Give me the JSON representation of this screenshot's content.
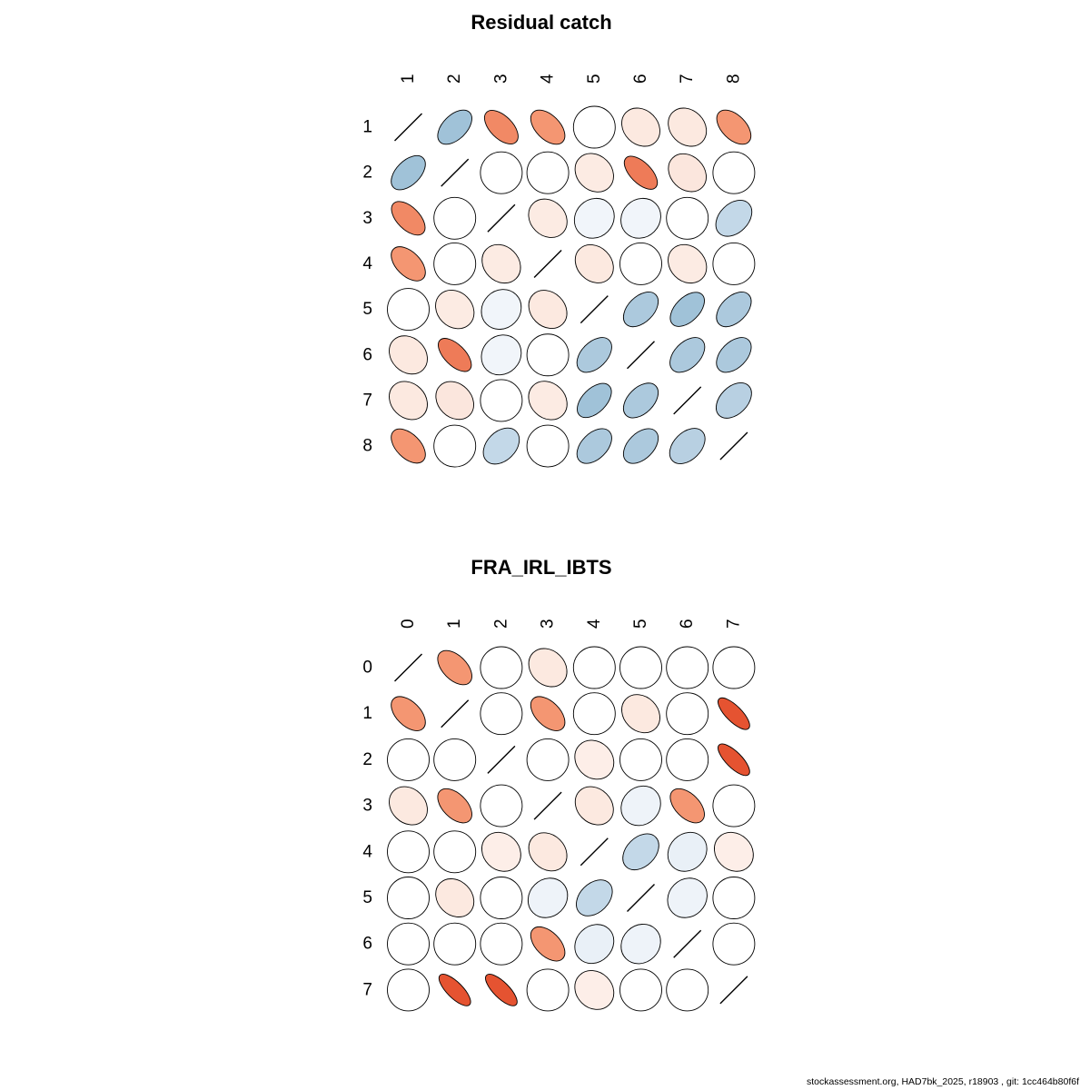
{
  "footer": "stockassessment.org, HAD7bk_2025, r18903 , git: 1cc464b80f6f",
  "colors": {
    "zero": "#ffffff",
    "positive_weak": "#dbe6f2",
    "positive_mid": "#a0c2d8",
    "positive_strong": "#6092bc",
    "positive_max": "#2166ac",
    "negative_weak": "#fbe3d8",
    "negative_mid": "#f49672",
    "negative_strong": "#e55331",
    "negative_max": "#b2182b",
    "stroke": "#000000"
  },
  "chart_data": [
    {
      "type": "heatmap",
      "subtype": "correlation-ellipse-matrix",
      "title": "Residual catch",
      "labels": [
        "1",
        "2",
        "3",
        "4",
        "5",
        "6",
        "7",
        "8"
      ],
      "encoding": "ellipse tilted up-right = positive correlation (blue), tilted down-right = negative correlation (red), circle = near zero, diagonal line = 1",
      "legend_position": "none",
      "grid": false,
      "matrix": [
        [
          1,
          0.5,
          -0.55,
          -0.5,
          0,
          -0.2,
          -0.2,
          -0.5
        ],
        [
          0.5,
          1,
          0,
          0,
          -0.18,
          -0.6,
          -0.22,
          0
        ],
        [
          -0.55,
          0,
          1,
          -0.18,
          0.1,
          0.1,
          0,
          0.35
        ],
        [
          -0.5,
          0,
          -0.18,
          1,
          -0.2,
          0,
          -0.18,
          0
        ],
        [
          0,
          -0.18,
          0.1,
          -0.2,
          1,
          0.45,
          0.5,
          0.45
        ],
        [
          -0.2,
          -0.6,
          0.1,
          0,
          0.45,
          1,
          0.45,
          0.45
        ],
        [
          -0.2,
          -0.22,
          0,
          -0.18,
          0.5,
          0.45,
          1,
          0.4
        ],
        [
          -0.5,
          0,
          0.35,
          0,
          0.45,
          0.45,
          0.4,
          1
        ]
      ]
    },
    {
      "type": "heatmap",
      "subtype": "correlation-ellipse-matrix",
      "title": "FRA_IRL_IBTS",
      "labels": [
        "0",
        "1",
        "2",
        "3",
        "4",
        "5",
        "6",
        "7"
      ],
      "encoding": "ellipse tilted up-right = positive correlation (blue), tilted down-right = negative correlation (red), circle = near zero, diagonal line = 1",
      "legend_position": "none",
      "grid": false,
      "matrix": [
        [
          1,
          -0.5,
          0,
          -0.2,
          0,
          0,
          0,
          0
        ],
        [
          -0.5,
          1,
          0,
          -0.5,
          0,
          -0.2,
          0,
          -0.75
        ],
        [
          0,
          0,
          1,
          0,
          -0.15,
          0,
          0,
          -0.75
        ],
        [
          -0.2,
          -0.5,
          0,
          1,
          -0.2,
          0.12,
          -0.5,
          0
        ],
        [
          0,
          0,
          -0.15,
          -0.2,
          1,
          0.35,
          0.15,
          -0.15
        ],
        [
          0,
          -0.2,
          0,
          0.12,
          0.35,
          1,
          0.12,
          0
        ],
        [
          0,
          0,
          0,
          -0.5,
          0.15,
          0.12,
          1,
          0
        ],
        [
          0,
          -0.75,
          -0.75,
          0,
          -0.15,
          0,
          0,
          1
        ]
      ]
    }
  ]
}
